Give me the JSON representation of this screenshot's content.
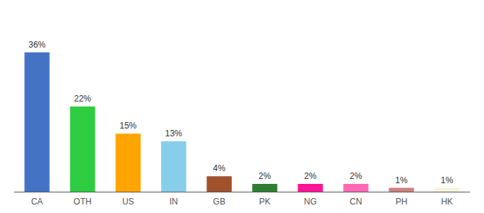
{
  "chart_data": {
    "type": "bar",
    "categories": [
      "CA",
      "OTH",
      "US",
      "IN",
      "GB",
      "PK",
      "NG",
      "CN",
      "PH",
      "HK"
    ],
    "values": [
      36,
      22,
      15,
      13,
      4,
      2,
      2,
      2,
      1,
      1
    ],
    "value_labels": [
      "36%",
      "22%",
      "15%",
      "13%",
      "4%",
      "2%",
      "2%",
      "2%",
      "1%",
      "1%"
    ],
    "colors": [
      "#4472C4",
      "#2ECC40",
      "#FFA500",
      "#87CEEB",
      "#A0522D",
      "#2E7D32",
      "#FF1493",
      "#FF69B4",
      "#CD8080",
      "#F5F5DC"
    ],
    "ylim": [
      0,
      44
    ],
    "data_labels": true,
    "tick_labels": "x",
    "grid": false
  }
}
